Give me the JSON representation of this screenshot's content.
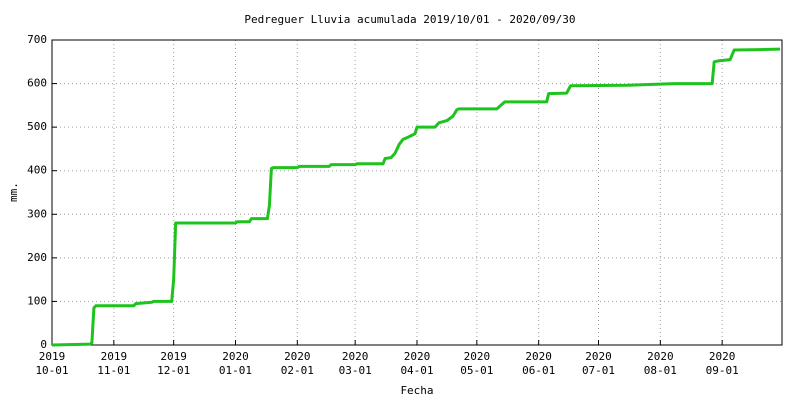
{
  "chart_data": {
    "type": "line",
    "title": "Pedreguer Lluvia acumulada 2019/10/01 - 2020/09/30",
    "x_label": "Fecha",
    "y_label": "mm.",
    "color": "#1ec31e",
    "x": [
      "2019-10-01",
      "2019-10-12",
      "2019-10-20",
      "2019-10-21",
      "2019-10-22",
      "2019-10-23",
      "2019-11-11",
      "2019-11-12",
      "2019-11-20",
      "2019-11-21",
      "2019-11-30",
      "2019-12-01",
      "2019-12-02",
      "2019-12-03",
      "2020-01-01",
      "2020-01-02",
      "2020-01-08",
      "2020-01-09",
      "2020-01-17",
      "2020-01-18",
      "2020-01-19",
      "2020-01-20",
      "2020-02-01",
      "2020-02-02",
      "2020-02-17",
      "2020-02-18",
      "2020-03-01",
      "2020-03-02",
      "2020-03-15",
      "2020-03-16",
      "2020-03-19",
      "2020-03-21",
      "2020-03-23",
      "2020-03-25",
      "2020-03-28",
      "2020-03-31",
      "2020-04-01",
      "2020-04-10",
      "2020-04-12",
      "2020-04-16",
      "2020-04-19",
      "2020-04-21",
      "2020-04-22",
      "2020-05-11",
      "2020-05-13",
      "2020-05-15",
      "2020-06-05",
      "2020-06-06",
      "2020-06-15",
      "2020-06-17",
      "2020-07-15",
      "2020-08-08",
      "2020-08-27",
      "2020-08-28",
      "2020-08-30",
      "2020-09-05",
      "2020-09-07",
      "2020-09-20",
      "2020-09-30"
    ],
    "values": [
      0,
      1,
      2,
      5,
      85,
      90,
      90,
      95,
      98,
      100,
      100,
      150,
      280,
      280,
      280,
      283,
      283,
      290,
      290,
      320,
      405,
      407,
      407,
      410,
      410,
      414,
      414,
      416,
      416,
      428,
      430,
      440,
      460,
      472,
      478,
      485,
      500,
      500,
      510,
      515,
      525,
      540,
      542,
      542,
      550,
      558,
      558,
      577,
      578,
      595,
      596,
      600,
      600,
      650,
      652,
      655,
      677,
      678,
      679
    ],
    "xlim": [
      "2019-10-01",
      "2020-10-01"
    ],
    "xticks": [
      {
        "value": "2019-10-01",
        "label": [
          "2019",
          "10-01"
        ]
      },
      {
        "value": "2019-11-01",
        "label": [
          "2019",
          "11-01"
        ]
      },
      {
        "value": "2019-12-01",
        "label": [
          "2019",
          "12-01"
        ]
      },
      {
        "value": "2020-01-01",
        "label": [
          "2020",
          "01-01"
        ]
      },
      {
        "value": "2020-02-01",
        "label": [
          "2020",
          "02-01"
        ]
      },
      {
        "value": "2020-03-01",
        "label": [
          "2020",
          "03-01"
        ]
      },
      {
        "value": "2020-04-01",
        "label": [
          "2020",
          "04-01"
        ]
      },
      {
        "value": "2020-05-01",
        "label": [
          "2020",
          "05-01"
        ]
      },
      {
        "value": "2020-06-01",
        "label": [
          "2020",
          "06-01"
        ]
      },
      {
        "value": "2020-07-01",
        "label": [
          "2020",
          "07-01"
        ]
      },
      {
        "value": "2020-08-01",
        "label": [
          "2020",
          "08-01"
        ]
      },
      {
        "value": "2020-09-01",
        "label": [
          "2020",
          "09-01"
        ]
      }
    ],
    "ylim": [
      0,
      700
    ],
    "yticks": [
      0,
      100,
      200,
      300,
      400,
      500,
      600,
      700
    ],
    "grid": true
  }
}
